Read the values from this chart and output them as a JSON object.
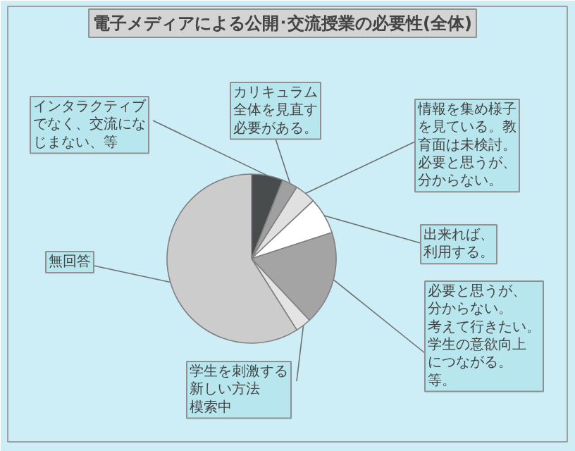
{
  "chart_data": {
    "type": "pie",
    "title": "電子メディアによる公開･交流授業の必要性(全体)",
    "categories": [
      "インタラクティブでなく、交流になじまない、等",
      "カリキュラム全体を見直す必要がある。",
      "情報を集め様子を見ている。教育面は未検討。必要と思うが、分からない。",
      "出来れば、利用する。",
      "必要と思うが、分からない。考えて行きたい。学生の意欲向上につながる。等。",
      "学生を刺激する新しい方法模索中",
      "無回答"
    ],
    "values": [
      6,
      3,
      4,
      7,
      18,
      3,
      59
    ],
    "colors": [
      "#484c4c",
      "#a0a0a0",
      "#e0e0e0",
      "#ffffff",
      "#a4a4a4",
      "#e4e4e4",
      "#cccccc"
    ]
  }
}
